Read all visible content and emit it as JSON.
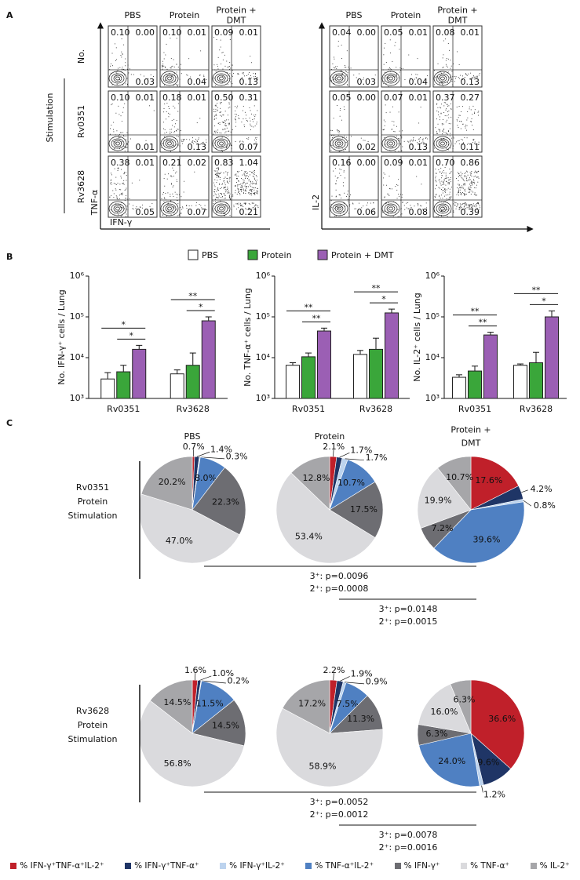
{
  "panel_a": {
    "label": "A",
    "columns": [
      "PBS",
      "Protein",
      "Protein + DMT"
    ],
    "rows": [
      "No.",
      "Rv0351",
      "Rv3628"
    ],
    "row_group": "Stimulation",
    "y_axes": [
      "TNF-α",
      "IL-2"
    ],
    "x_axis": "IFN-γ",
    "plots": [
      [
        [
          [
            "0.10",
            "0.00",
            "0.03"
          ],
          [
            "0.10",
            "0.01",
            "0.04"
          ],
          [
            "0.09",
            "0.01",
            "0.13"
          ]
        ],
        [
          [
            "0.10",
            "0.01",
            "0.01"
          ],
          [
            "0.18",
            "0.01",
            "0.13"
          ],
          [
            "0.50",
            "0.31",
            "0.07"
          ]
        ],
        [
          [
            "0.38",
            "0.01",
            "0.05"
          ],
          [
            "0.21",
            "0.02",
            "0.07"
          ],
          [
            "0.83",
            "1.04",
            "0.21"
          ]
        ]
      ],
      [
        [
          [
            "0.04",
            "0.00",
            "0.03"
          ],
          [
            "0.05",
            "0.01",
            "0.04"
          ],
          [
            "0.08",
            "0.01",
            "0.13"
          ]
        ],
        [
          [
            "0.05",
            "0.00",
            "0.02"
          ],
          [
            "0.07",
            "0.01",
            "0.13"
          ],
          [
            "0.37",
            "0.27",
            "0.11"
          ]
        ],
        [
          [
            "0.16",
            "0.00",
            "0.06"
          ],
          [
            "0.09",
            "0.01",
            "0.08"
          ],
          [
            "0.70",
            "0.86",
            "0.39"
          ]
        ]
      ]
    ]
  },
  "panel_b": {
    "label": "B"
  },
  "panel_c": {
    "label": "C",
    "columns": [
      "PBS",
      "Protein",
      "Protein + DMT"
    ],
    "rows": [
      "Rv0351 Protein Stimulation",
      "Rv3628 Protein Stimulation"
    ],
    "comparisons": [
      [
        [
          "3⁺: p=0.0096",
          "2⁺: p=0.0008"
        ],
        [
          "3⁺: p=0.0148",
          "2⁺: p=0.0015"
        ]
      ],
      [
        [
          "3⁺: p=0.0052",
          "2⁺: p=0.0012"
        ],
        [
          "3⁺: p=0.0078",
          "2⁺: p=0.0016"
        ]
      ]
    ]
  },
  "pie_legend": {
    "categories": [
      "% IFN-γ⁺TNF-α⁺IL-2⁺",
      "% IFN-γ⁺TNF-α⁺",
      "% IFN-γ⁺IL-2⁺",
      "% TNF-α⁺IL-2⁺",
      "% IFN-γ⁺",
      "% TNF-α⁺",
      "% IL-2⁺"
    ],
    "colors": [
      "#c0202a",
      "#1f3566",
      "#bcd3ee",
      "#4f80c2",
      "#6d6d72",
      "#dadadd",
      "#a6a6a9"
    ]
  },
  "chart_data": [
    {
      "type": "bar",
      "ylabel": "No. IFN-γ⁺ cells / Lung",
      "categories": [
        "Rv0351",
        "Rv3628"
      ],
      "log_y": true,
      "ylim": [
        1000,
        1000000
      ],
      "yticks": [
        {
          "value": 1000,
          "label": "10³"
        },
        {
          "value": 10000,
          "label": "10⁴"
        },
        {
          "value": 100000,
          "label": "10⁵"
        },
        {
          "value": 1000000,
          "label": "10⁶"
        }
      ],
      "series": [
        {
          "name": "PBS",
          "color": "#ffffff",
          "values": [
            3000,
            4000
          ],
          "errors": [
            1300,
            1000
          ]
        },
        {
          "name": "Protein",
          "color": "#3aa63a",
          "values": [
            4500,
            6500
          ],
          "errors": [
            2000,
            6500
          ]
        },
        {
          "name": "Protein + DMT",
          "color": "#9b5fb4",
          "values": [
            16000,
            80000
          ],
          "errors": [
            4000,
            20000
          ]
        }
      ],
      "annotations": [
        {
          "text": "*",
          "category": "Rv0351",
          "between": [
            "PBS",
            "Protein + DMT"
          ]
        },
        {
          "text": "*",
          "category": "Rv0351",
          "between": [
            "Protein",
            "Protein + DMT"
          ]
        },
        {
          "text": "**",
          "category": "Rv3628",
          "between": [
            "PBS",
            "Protein + DMT"
          ]
        },
        {
          "text": "*",
          "category": "Rv3628",
          "between": [
            "Protein",
            "Protein + DMT"
          ]
        }
      ]
    },
    {
      "type": "bar",
      "ylabel": "No. TNF-α⁺ cells / Lung",
      "categories": [
        "Rv0351",
        "Rv3628"
      ],
      "log_y": true,
      "ylim": [
        1000,
        1000000
      ],
      "yticks": [
        {
          "value": 1000,
          "label": "10³"
        },
        {
          "value": 10000,
          "label": "10⁴"
        },
        {
          "value": 100000,
          "label": "10⁵"
        },
        {
          "value": 1000000,
          "label": "10⁶"
        }
      ],
      "series": [
        {
          "name": "PBS",
          "color": "#ffffff",
          "values": [
            6500,
            12000
          ],
          "errors": [
            1000,
            3000
          ]
        },
        {
          "name": "Protein",
          "color": "#3aa63a",
          "values": [
            10500,
            16000
          ],
          "errors": [
            2500,
            14000
          ]
        },
        {
          "name": "Protein + DMT",
          "color": "#9b5fb4",
          "values": [
            45000,
            125000
          ],
          "errors": [
            8000,
            30000
          ]
        }
      ],
      "annotations": [
        {
          "text": "**",
          "category": "Rv0351",
          "between": [
            "PBS",
            "Protein + DMT"
          ]
        },
        {
          "text": "**",
          "category": "Rv0351",
          "between": [
            "Protein",
            "Protein + DMT"
          ]
        },
        {
          "text": "**",
          "category": "Rv3628",
          "between": [
            "PBS",
            "Protein + DMT"
          ]
        },
        {
          "text": "*",
          "category": "Rv3628",
          "between": [
            "Protein",
            "Protein + DMT"
          ]
        }
      ]
    },
    {
      "type": "bar",
      "ylabel": "No. IL-2⁺ cells / Lung",
      "categories": [
        "Rv0351",
        "Rv3628"
      ],
      "log_y": true,
      "ylim": [
        1000,
        1000000
      ],
      "yticks": [
        {
          "value": 1000,
          "label": "10³"
        },
        {
          "value": 10000,
          "label": "10⁴"
        },
        {
          "value": 100000,
          "label": "10⁵"
        },
        {
          "value": 1000000,
          "label": "10⁶"
        }
      ],
      "series": [
        {
          "name": "PBS",
          "color": "#ffffff",
          "values": [
            3300,
            6500
          ],
          "errors": [
            500,
            500
          ]
        },
        {
          "name": "Protein",
          "color": "#3aa63a",
          "values": [
            4700,
            7500
          ],
          "errors": [
            1500,
            6000
          ]
        },
        {
          "name": "Protein + DMT",
          "color": "#9b5fb4",
          "values": [
            36000,
            100000
          ],
          "errors": [
            6000,
            40000
          ]
        }
      ],
      "annotations": [
        {
          "text": "**",
          "category": "Rv0351",
          "between": [
            "PBS",
            "Protein + DMT"
          ]
        },
        {
          "text": "**",
          "category": "Rv0351",
          "between": [
            "Protein",
            "Protein + DMT"
          ]
        },
        {
          "text": "**",
          "category": "Rv3628",
          "between": [
            "PBS",
            "Protein + DMT"
          ]
        },
        {
          "text": "*",
          "category": "Rv3628",
          "between": [
            "Protein",
            "Protein + DMT"
          ]
        }
      ]
    },
    {
      "type": "pie",
      "values": [
        0.7,
        1.4,
        0.3,
        8.0,
        22.3,
        47.0,
        20.2
      ],
      "value_labels": [
        "0.7%",
        "1.4%",
        "0.3%",
        "8.0%",
        "22.3%",
        "47.0%",
        "20.2%"
      ]
    },
    {
      "type": "pie",
      "values": [
        2.1,
        1.7,
        1.7,
        10.7,
        17.5,
        53.4,
        12.8
      ],
      "value_labels": [
        "2.1%",
        "1.7%",
        "1.7%",
        "10.7%",
        "17.5%",
        "53.4%",
        "12.8%"
      ]
    },
    {
      "type": "pie",
      "values": [
        17.6,
        4.2,
        0.8,
        39.6,
        7.2,
        19.9,
        10.7
      ],
      "value_labels": [
        "17.6%",
        "4.2%",
        "0.8%",
        "39.6%",
        "7.2%",
        "19.9%",
        "10.7%"
      ]
    },
    {
      "type": "pie",
      "values": [
        1.6,
        1.0,
        0.2,
        11.5,
        14.5,
        56.8,
        14.5
      ],
      "value_labels": [
        "1.6%",
        "1.0%",
        "0.2%",
        "11.5%",
        "14.5%",
        "56.8%",
        "14.5%"
      ]
    },
    {
      "type": "pie",
      "values": [
        2.2,
        1.9,
        0.9,
        7.5,
        11.3,
        58.9,
        17.2
      ],
      "value_labels": [
        "2.2%",
        "1.9%",
        "0.9%",
        "7.5%",
        "11.3%",
        "58.9%",
        "17.2%"
      ]
    },
    {
      "type": "pie",
      "values": [
        36.6,
        9.6,
        1.2,
        24.0,
        6.3,
        16.0,
        6.3
      ],
      "value_labels": [
        "36.6%",
        "9.6%",
        "1.2%",
        "24.0%",
        "6.3%",
        "16.0%",
        "6.3%"
      ]
    }
  ]
}
